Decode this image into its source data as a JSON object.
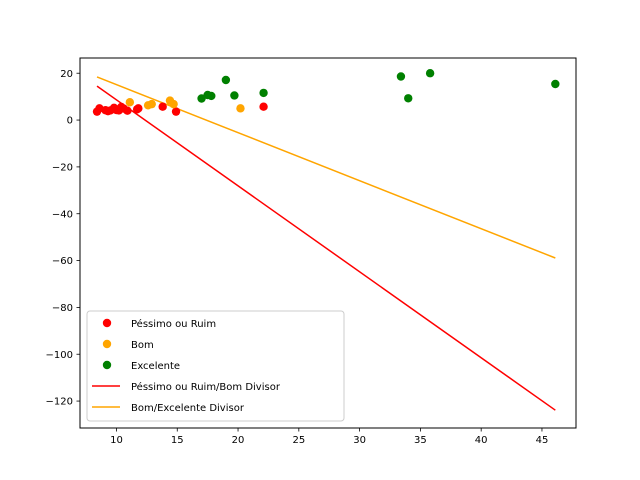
{
  "chart_data": {
    "type": "scatter",
    "title": "",
    "xlabel": "",
    "ylabel": "",
    "xlim": [
      7.0,
      47.8
    ],
    "ylim": [
      -131.5,
      26.5
    ],
    "grid": false,
    "legend_position": "lower-left",
    "xticks": [
      10,
      15,
      20,
      25,
      30,
      35,
      40,
      45
    ],
    "yticks": [
      20,
      0,
      -20,
      -40,
      -60,
      -80,
      -100,
      -120
    ],
    "xtick_labels": [
      "10",
      "15",
      "20",
      "25",
      "30",
      "35",
      "40",
      "45"
    ],
    "ytick_labels": [
      "20",
      "0",
      "−20",
      "−40",
      "−60",
      "−80",
      "−100",
      "−120"
    ],
    "series": [
      {
        "name": "Péssimo ou Ruim",
        "kind": "scatter",
        "color": "#ff0000",
        "points": [
          [
            8.4,
            3.6
          ],
          [
            8.6,
            5.0
          ],
          [
            9.1,
            4.2
          ],
          [
            9.3,
            3.8
          ],
          [
            9.5,
            4.1
          ],
          [
            9.8,
            5.2
          ],
          [
            10.0,
            4.3
          ],
          [
            10.2,
            4.1
          ],
          [
            10.4,
            5.6
          ],
          [
            10.6,
            4.9
          ],
          [
            10.9,
            4.0
          ],
          [
            11.7,
            4.6
          ],
          [
            11.8,
            5.0
          ],
          [
            13.8,
            5.7
          ],
          [
            14.9,
            3.6
          ],
          [
            22.1,
            5.7
          ]
        ]
      },
      {
        "name": "Bom",
        "kind": "scatter",
        "color": "#ffa500",
        "points": [
          [
            11.1,
            7.6
          ],
          [
            12.6,
            6.3
          ],
          [
            12.9,
            6.8
          ],
          [
            14.4,
            8.3
          ],
          [
            14.7,
            6.8
          ],
          [
            20.2,
            5.0
          ]
        ]
      },
      {
        "name": "Excelente",
        "kind": "scatter",
        "color": "#008000",
        "points": [
          [
            17.0,
            9.2
          ],
          [
            17.5,
            10.7
          ],
          [
            17.8,
            10.3
          ],
          [
            19.0,
            17.1
          ],
          [
            19.7,
            10.5
          ],
          [
            22.1,
            11.6
          ],
          [
            33.4,
            18.6
          ],
          [
            34.0,
            9.3
          ],
          [
            35.8,
            20.0
          ],
          [
            46.1,
            15.4
          ]
        ]
      },
      {
        "name": "Péssimo ou Ruim/Bom Divisor",
        "kind": "line",
        "color": "#ff0000",
        "points": [
          [
            8.4,
            14.5
          ],
          [
            46.1,
            -123.9
          ]
        ]
      },
      {
        "name": "Bom/Excelente Divisor",
        "kind": "line",
        "color": "#ffa500",
        "points": [
          [
            8.4,
            18.4
          ],
          [
            46.1,
            -58.9
          ]
        ]
      }
    ]
  }
}
